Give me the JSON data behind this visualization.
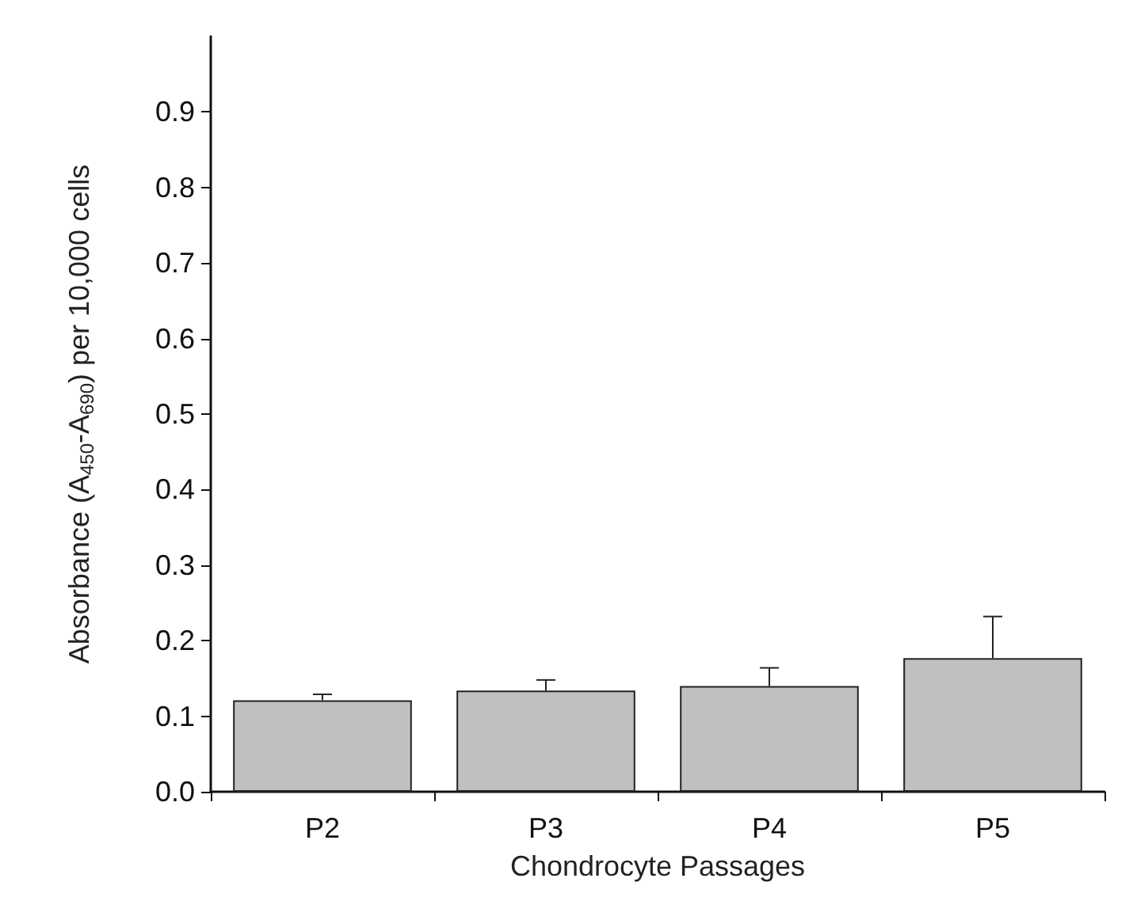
{
  "chart_data": {
    "type": "bar",
    "xlabel": "Chondrocyte Passages",
    "ylabel": "Absorbance (A$_{450}$-A$_{690}$) per 10,000 cells",
    "categories": [
      "P2",
      "P3",
      "P4",
      "P5"
    ],
    "values": [
      0.121,
      0.134,
      0.14,
      0.177
    ],
    "errors": [
      [
        0.121,
        0.129
      ],
      [
        0.134,
        0.148
      ],
      [
        0.14,
        0.164
      ],
      [
        0.177,
        0.232
      ]
    ],
    "color": "#c0c0c0",
    "ylim": [
      0,
      1.0
    ],
    "yticks": [
      {
        "value": 0,
        "label": "0.0"
      },
      {
        "value": 0.1,
        "label": "0.1"
      },
      {
        "value": 0.2,
        "label": "0.2"
      },
      {
        "value": 0.3,
        "label": "0.3"
      },
      {
        "value": 0.4,
        "label": "0.4"
      },
      {
        "value": 0.5,
        "label": "0.5"
      },
      {
        "value": 0.6,
        "label": "0.6"
      },
      {
        "value": 0.7,
        "label": "0.7"
      },
      {
        "value": 0.8,
        "label": "0.8"
      },
      {
        "value": 0.9,
        "label": "0.9"
      }
    ],
    "grid": false
  }
}
